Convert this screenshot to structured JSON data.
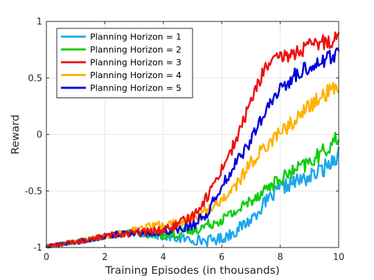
{
  "chart_data": {
    "type": "line",
    "title": "",
    "xlabel": "Training Episodes (in thousands)",
    "ylabel": "Reward",
    "xlim": [
      0,
      10
    ],
    "ylim": [
      -1,
      1
    ],
    "xticks": [
      0,
      2,
      4,
      6,
      8,
      10
    ],
    "yticks": [
      -1,
      -0.5,
      0,
      0.5,
      1
    ],
    "xtick_labels": [
      "0",
      "2",
      "4",
      "6",
      "8",
      "10"
    ],
    "ytick_labels": [
      "-1",
      "-0.5",
      "0",
      "0.5",
      "1"
    ],
    "grid": true,
    "legend_position": "top-left",
    "x": [
      0,
      0.5,
      1,
      1.5,
      2,
      2.5,
      3,
      3.5,
      4,
      4.5,
      5,
      5.5,
      6,
      6.5,
      7,
      7.5,
      8,
      8.5,
      9,
      9.5,
      10
    ],
    "series": [
      {
        "name": "Planning Horizon = 1",
        "color": "#1aa7ec",
        "values": [
          -0.99,
          -0.97,
          -0.95,
          -0.93,
          -0.9,
          -0.88,
          -0.87,
          -0.88,
          -0.9,
          -0.92,
          -0.93,
          -0.94,
          -0.92,
          -0.85,
          -0.75,
          -0.6,
          -0.48,
          -0.42,
          -0.38,
          -0.3,
          -0.17
        ]
      },
      {
        "name": "Planning Horizon = 2",
        "color": "#11cc11",
        "values": [
          -0.99,
          -0.97,
          -0.95,
          -0.93,
          -0.9,
          -0.88,
          -0.87,
          -0.88,
          -0.89,
          -0.88,
          -0.85,
          -0.8,
          -0.75,
          -0.68,
          -0.58,
          -0.48,
          -0.4,
          -0.32,
          -0.25,
          -0.15,
          -0.02
        ]
      },
      {
        "name": "Planning Horizon = 3",
        "color": "#ee1111",
        "values": [
          -0.99,
          -0.97,
          -0.95,
          -0.93,
          -0.9,
          -0.88,
          -0.87,
          -0.86,
          -0.85,
          -0.8,
          -0.72,
          -0.55,
          -0.3,
          -0.05,
          0.3,
          0.6,
          0.68,
          0.72,
          0.78,
          0.82,
          0.86
        ]
      },
      {
        "name": "Planning Horizon = 4",
        "color": "#ffb000",
        "values": [
          -0.99,
          -0.97,
          -0.95,
          -0.93,
          -0.9,
          -0.88,
          -0.85,
          -0.82,
          -0.8,
          -0.78,
          -0.75,
          -0.67,
          -0.58,
          -0.45,
          -0.25,
          -0.1,
          0.02,
          0.12,
          0.25,
          0.35,
          0.42
        ]
      },
      {
        "name": "Planning Horizon = 5",
        "color": "#0000dd",
        "values": [
          -0.99,
          -0.97,
          -0.95,
          -0.93,
          -0.9,
          -0.88,
          -0.87,
          -0.87,
          -0.85,
          -0.83,
          -0.8,
          -0.7,
          -0.45,
          -0.25,
          -0.05,
          0.2,
          0.4,
          0.52,
          0.6,
          0.66,
          0.72
        ]
      }
    ]
  }
}
